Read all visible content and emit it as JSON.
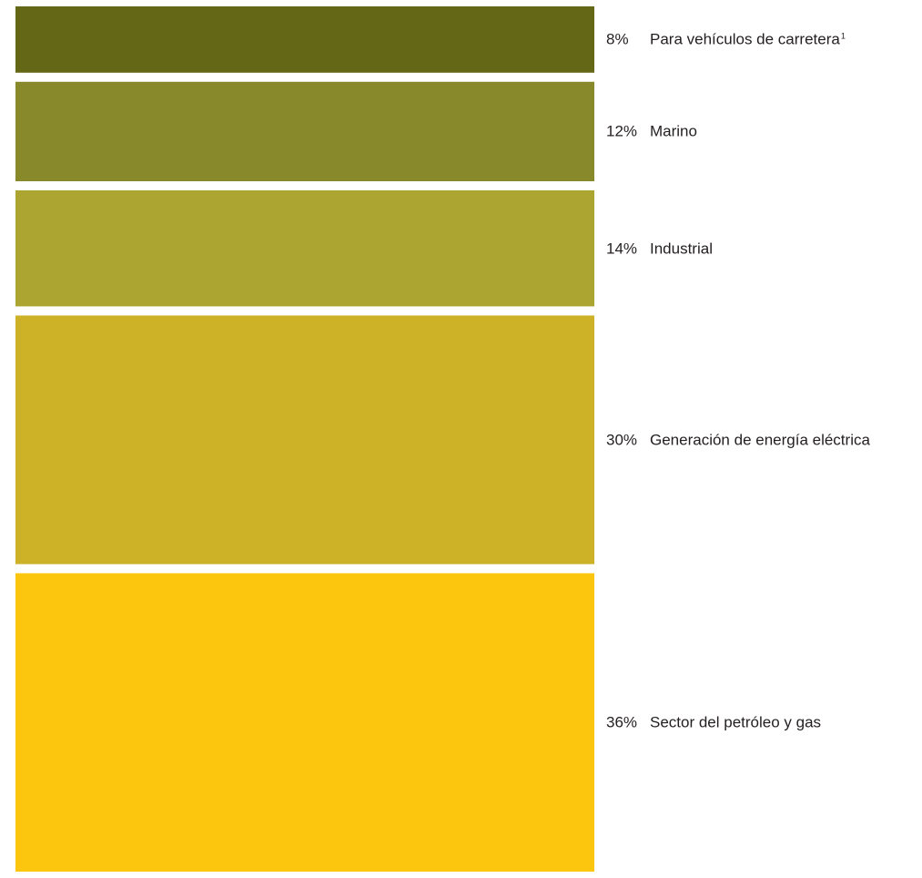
{
  "chart_data": {
    "type": "bar",
    "orientation": "stacked-vertical",
    "categories": [
      "Para vehículos de carretera",
      "Marino",
      "Industrial",
      "Generación de energía eléctrica",
      "Sector del petróleo y gas"
    ],
    "values": [
      8,
      12,
      14,
      30,
      36
    ],
    "value_labels": [
      "8%",
      "12%",
      "14%",
      "30%",
      "36%"
    ],
    "footnote_markers": [
      "1",
      "",
      "",
      "",
      ""
    ],
    "colors": [
      "#636716",
      "#88892a",
      "#aca532",
      "#cdb228",
      "#fcc50e"
    ],
    "legend": "right",
    "grid": false,
    "title": "",
    "xlabel": "",
    "ylabel": ""
  }
}
